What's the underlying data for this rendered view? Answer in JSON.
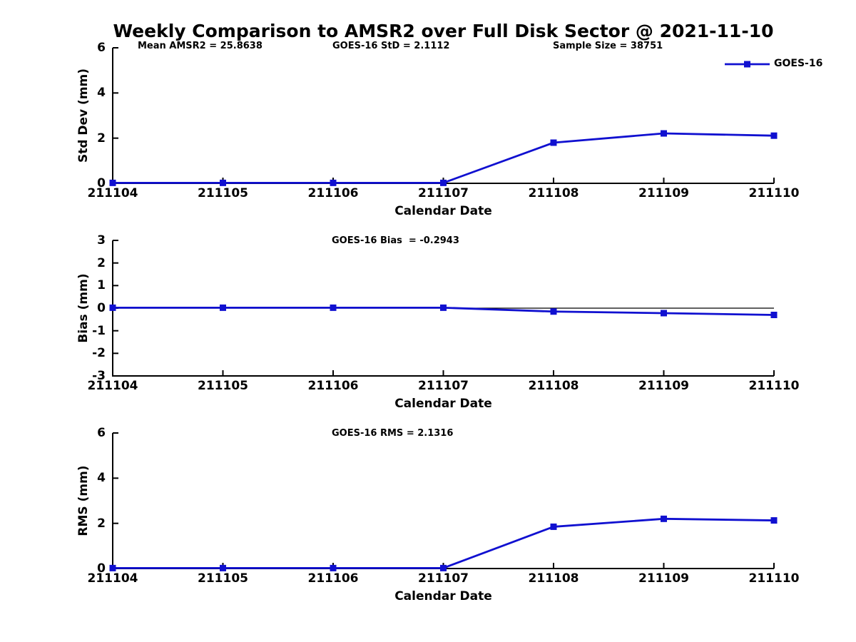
{
  "title": "Weekly Comparison to AMSR2 over Full Disk Sector @ 2021-11-10",
  "colors": {
    "series_blue": "#1010d0",
    "axis_black": "#000000",
    "background": "#ffffff"
  },
  "chart_data": [
    {
      "type": "line",
      "name": "std-dev-vs-date",
      "xlabel": "Calendar Date",
      "ylabel": "Std Dev (mm)",
      "ylim": [
        0,
        6
      ],
      "yticks": [
        0,
        2,
        4,
        6
      ],
      "categories": [
        "211104",
        "211105",
        "211106",
        "211107",
        "211108",
        "211109",
        "211110"
      ],
      "series": [
        {
          "name": "GOES-16",
          "color": "#1010d0",
          "marker": "square",
          "values": [
            0.02,
            0.02,
            0.02,
            0.02,
            1.8,
            2.21,
            2.11
          ]
        }
      ],
      "annotations": [
        {
          "text": "Mean AMSR2 = 25.8638"
        },
        {
          "text": "GOES-16 StD = 2.1112"
        },
        {
          "text": "Sample Size = 38751"
        }
      ],
      "legend": {
        "visible": true,
        "position": "top-right",
        "entries": [
          "GOES-16"
        ]
      },
      "grid": false,
      "zero_line": false
    },
    {
      "type": "line",
      "name": "bias-vs-date",
      "xlabel": "Calendar Date",
      "ylabel": "Bias (mm)",
      "ylim": [
        -3,
        3
      ],
      "yticks": [
        3,
        2,
        1,
        0,
        -1,
        -2,
        -3
      ],
      "categories": [
        "211104",
        "211105",
        "211106",
        "211107",
        "211108",
        "211109",
        "211110"
      ],
      "series": [
        {
          "name": "GOES-16",
          "color": "#1010d0",
          "marker": "square",
          "values": [
            0.02,
            0.02,
            0.02,
            0.02,
            -0.15,
            -0.22,
            -0.3
          ]
        }
      ],
      "annotations": [
        {
          "text": "GOES-16 Bias  = -0.2943"
        }
      ],
      "legend": {
        "visible": false
      },
      "grid": false,
      "zero_line": true
    },
    {
      "type": "line",
      "name": "rms-vs-date",
      "xlabel": "Calendar Date",
      "ylabel": "RMS (mm)",
      "ylim": [
        0,
        6
      ],
      "yticks": [
        0,
        2,
        4,
        6
      ],
      "categories": [
        "211104",
        "211105",
        "211106",
        "211107",
        "211108",
        "211109",
        "211110"
      ],
      "series": [
        {
          "name": "GOES-16",
          "color": "#1010d0",
          "marker": "square",
          "values": [
            0.02,
            0.02,
            0.02,
            0.02,
            1.85,
            2.2,
            2.13
          ]
        }
      ],
      "annotations": [
        {
          "text": "GOES-16 RMS = 2.1316"
        }
      ],
      "legend": {
        "visible": false
      },
      "grid": false,
      "zero_line": false
    }
  ]
}
